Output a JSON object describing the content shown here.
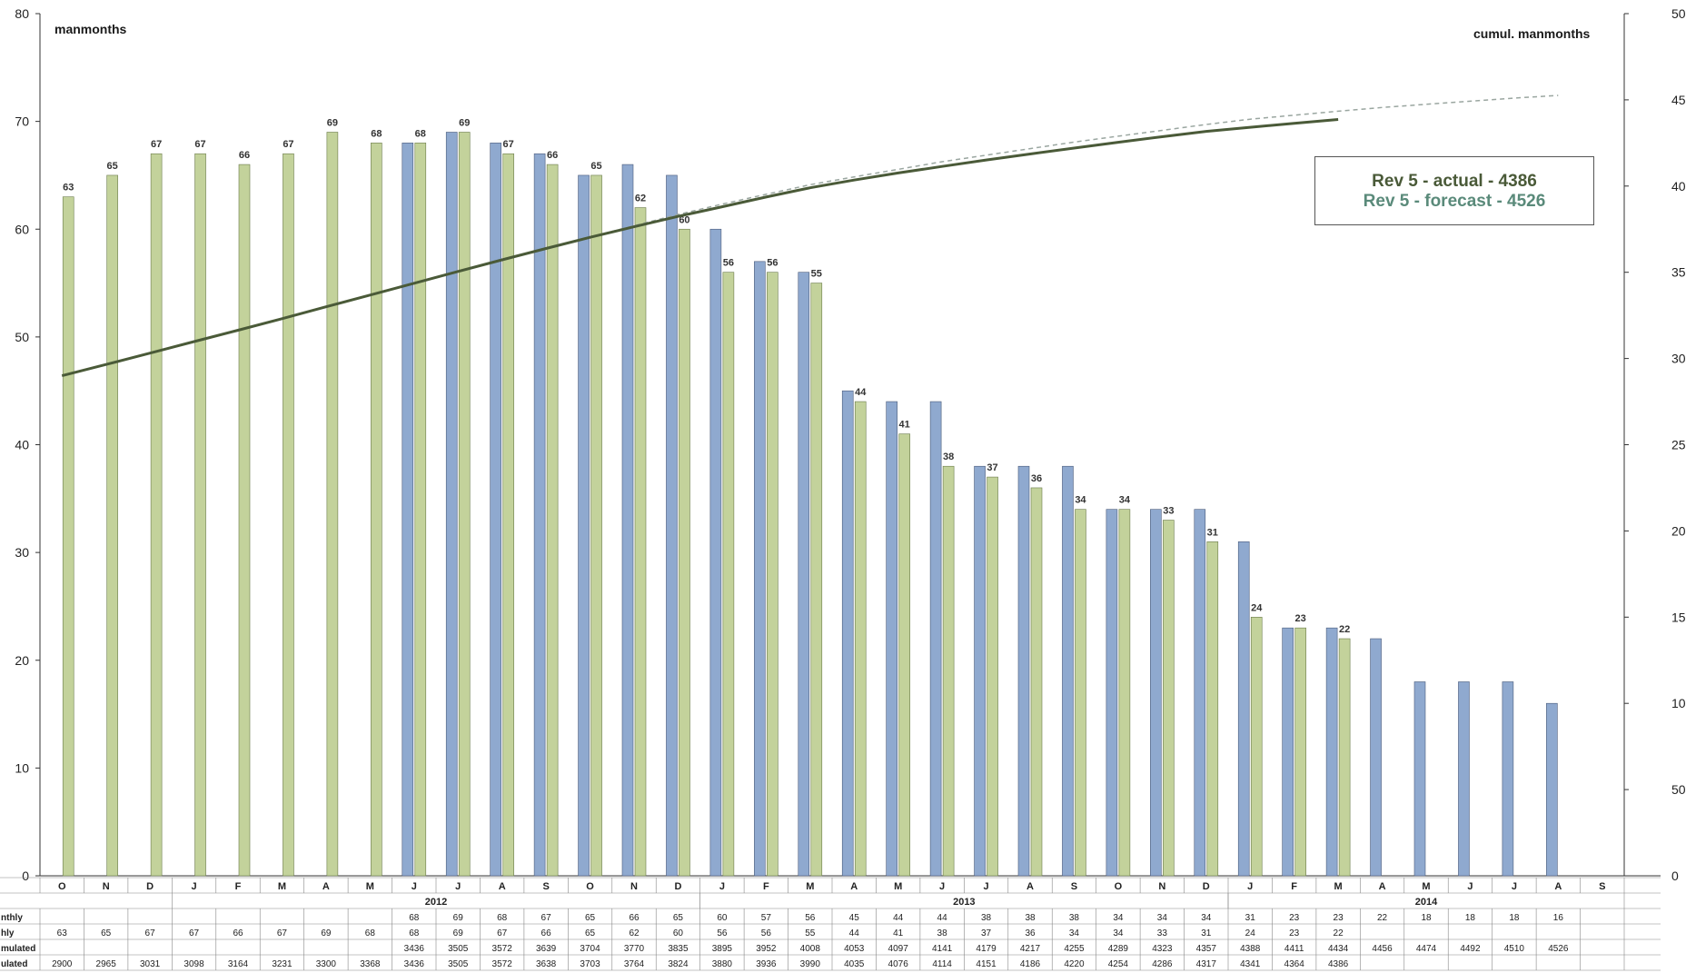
{
  "chart_data": {
    "type": "bar",
    "left_axis_label": "manmonths",
    "right_axis_label": "cumul. manmonths",
    "ylim_left": [
      0,
      80
    ],
    "ylim_right": [
      0,
      5000
    ],
    "y_ticks_left": [
      "0",
      "10",
      "20",
      "30",
      "40",
      "50",
      "60",
      "70",
      "80"
    ],
    "y_ticks_right": [
      "0",
      "500",
      "1000",
      "1500",
      "2000",
      "2500",
      "3000",
      "3500",
      "4000",
      "4500",
      "5000"
    ],
    "categories": [
      "O",
      "N",
      "D",
      "J",
      "F",
      "M",
      "A",
      "M",
      "J",
      "J",
      "A",
      "S",
      "O",
      "N",
      "D",
      "J",
      "F",
      "M",
      "A",
      "M",
      "J",
      "J",
      "A",
      "S",
      "O",
      "N",
      "D",
      "J",
      "F",
      "M",
      "A",
      "M",
      "J",
      "J",
      "A",
      "S"
    ],
    "years": [
      {
        "label": "2012",
        "start": 3,
        "end": 14
      },
      {
        "label": "2013",
        "start": 15,
        "end": 26
      },
      {
        "label": "2014",
        "start": 27,
        "end": 35
      }
    ],
    "legend": {
      "actual": "Rev 5 - actual - 4386",
      "forecast": "Rev 5 - forecast - 4526"
    },
    "series": [
      {
        "role": "forecast_monthly",
        "values": [
          null,
          null,
          null,
          null,
          null,
          null,
          null,
          null,
          68,
          69,
          68,
          67,
          65,
          66,
          65,
          60,
          57,
          56,
          45,
          44,
          44,
          38,
          38,
          38,
          34,
          34,
          34,
          31,
          23,
          23,
          22,
          18,
          18,
          18,
          16,
          null
        ]
      },
      {
        "role": "actual_monthly",
        "values": [
          63,
          65,
          67,
          67,
          66,
          67,
          69,
          68,
          68,
          69,
          67,
          66,
          65,
          62,
          60,
          56,
          56,
          55,
          44,
          41,
          38,
          37,
          36,
          34,
          34,
          33,
          31,
          24,
          23,
          22,
          null,
          null,
          null,
          null,
          null,
          null
        ]
      },
      {
        "role": "forecast_cumulated",
        "values": [
          null,
          null,
          null,
          null,
          null,
          null,
          null,
          null,
          3436,
          3505,
          3572,
          3639,
          3704,
          3770,
          3835,
          3895,
          3952,
          4008,
          4053,
          4097,
          4141,
          4179,
          4217,
          4255,
          4289,
          4323,
          4357,
          4388,
          4411,
          4434,
          4456,
          4474,
          4492,
          4510,
          4526,
          null
        ]
      },
      {
        "role": "actual_cumulated",
        "values": [
          2900,
          2965,
          3031,
          3098,
          3164,
          3231,
          3300,
          3368,
          3436,
          3505,
          3572,
          3638,
          3703,
          3764,
          3824,
          3880,
          3936,
          3990,
          4035,
          4076,
          4114,
          4151,
          4186,
          4220,
          4254,
          4286,
          4317,
          4341,
          4364,
          4386,
          null,
          null,
          null,
          null,
          null,
          null
        ]
      }
    ],
    "bar_labels": [
      "63",
      "65",
      "67",
      "67",
      "66",
      "67",
      "69",
      "68",
      "68",
      "69",
      "67",
      "66",
      "65",
      "62",
      "60",
      "56",
      "56",
      "55",
      "44",
      "41",
      "38",
      "37",
      "36",
      "34",
      "34",
      "33",
      "31",
      "24",
      "23",
      "22",
      "",
      "",
      "",
      "",
      "",
      ""
    ],
    "table_rows": [
      {
        "label": "nthly",
        "values": [
          "",
          "",
          "",
          "",
          "",
          "",
          "",
          "",
          "68",
          "69",
          "68",
          "67",
          "65",
          "66",
          "65",
          "60",
          "57",
          "56",
          "45",
          "44",
          "44",
          "38",
          "38",
          "38",
          "34",
          "34",
          "34",
          "31",
          "23",
          "23",
          "22",
          "18",
          "18",
          "18",
          "16",
          ""
        ]
      },
      {
        "label": "hly",
        "values": [
          "63",
          "65",
          "67",
          "67",
          "66",
          "67",
          "69",
          "68",
          "68",
          "69",
          "67",
          "66",
          "65",
          "62",
          "60",
          "56",
          "56",
          "55",
          "44",
          "41",
          "38",
          "37",
          "36",
          "34",
          "34",
          "33",
          "31",
          "24",
          "23",
          "22",
          "",
          "",
          "",
          "",
          "",
          ""
        ]
      },
      {
        "label": "mulated",
        "values": [
          "",
          "",
          "",
          "",
          "",
          "",
          "",
          "",
          "3436",
          "3505",
          "3572",
          "3639",
          "3704",
          "3770",
          "3835",
          "3895",
          "3952",
          "4008",
          "4053",
          "4097",
          "4141",
          "4179",
          "4217",
          "4255",
          "4289",
          "4323",
          "4357",
          "4388",
          "4411",
          "4434",
          "4456",
          "4474",
          "4492",
          "4510",
          "4526",
          ""
        ]
      },
      {
        "label": "ulated",
        "values": [
          "2900",
          "2965",
          "3031",
          "3098",
          "3164",
          "3231",
          "3300",
          "3368",
          "3436",
          "3505",
          "3572",
          "3638",
          "3703",
          "3764",
          "3824",
          "3880",
          "3936",
          "3990",
          "4035",
          "4076",
          "4114",
          "4151",
          "4186",
          "4220",
          "4254",
          "4286",
          "4317",
          "4341",
          "4364",
          "4386",
          "",
          "",
          "",
          "",
          "",
          ""
        ]
      }
    ],
    "colors": {
      "forecast_bar": "#8fa9cf",
      "actual_bar": "#c3d29b",
      "actual_line": "#4a5a38",
      "forecast_line": "#9aa6a0",
      "legend_actual": "#4a5a38",
      "legend_forecast": "#5a8a7a"
    }
  }
}
